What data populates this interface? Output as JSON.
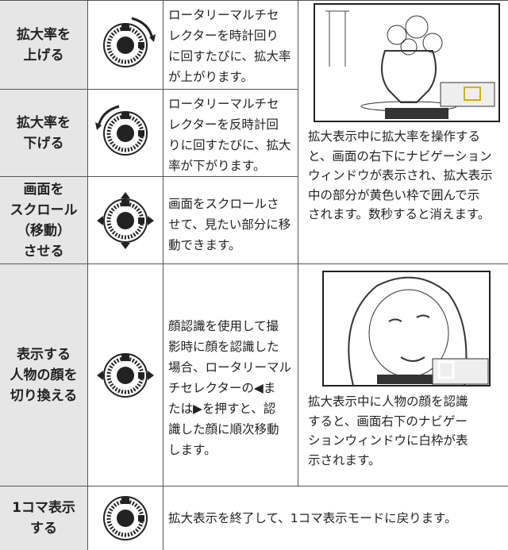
{
  "rows": [
    {
      "action": [
        "拡大率を",
        "上げる"
      ],
      "description": [
        "ロータリーマルチセ",
        "レクターを時計回り",
        "に回すたびに、拡大率",
        "が上がります。"
      ]
    },
    {
      "action": [
        "拡大率を",
        "下げる"
      ],
      "description": [
        "ロータリーマルチセ",
        "レクターを反時計回",
        "りに回すたびに、拡大",
        "率が下がります。"
      ]
    },
    {
      "action": [
        "画面を",
        "スクロール",
        "（移動）",
        "させる"
      ],
      "description": [
        "画面をスクロールさ",
        "せて、見たい部分に移",
        "動できます。"
      ]
    },
    {
      "action": [
        "表示する",
        "人物の顔を",
        "切り換える"
      ],
      "description": [
        "顔認識を使用して撮",
        "影時に顔を認識した",
        "場合、ロータリーマル",
        "チセレクターの◀ま",
        "たは▶を押すと、認",
        "識した顔に順次移動",
        "します。"
      ]
    },
    {
      "action": [
        "1コマ表示",
        "する"
      ],
      "description": [
        "拡大表示を終了して、1コマ表示モードに戻ります。"
      ]
    }
  ],
  "captions": [
    [
      "拡大表示中に拡大率を操作する",
      "と、画面の右下にナビゲーション",
      "ウィンドウが表示され、拡大表示",
      "中の部分が黄色い枠で囲んで示",
      "されます。数秒すると消えます。"
    ],
    [
      "拡大表示中に人物の顔を認識",
      "すると、画面右下のナビゲー",
      "ションウィンドウに白枠が表",
      "示されます。"
    ]
  ]
}
